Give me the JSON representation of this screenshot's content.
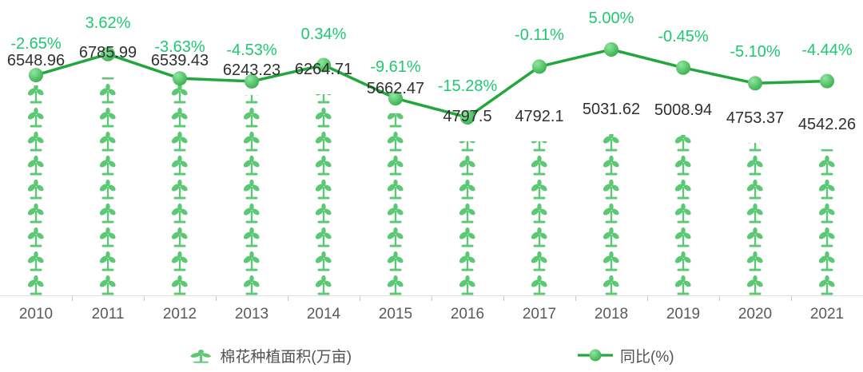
{
  "chart_data": {
    "type": "pictorial-bar+line",
    "title": "",
    "categories": [
      "2010",
      "2011",
      "2012",
      "2013",
      "2014",
      "2015",
      "2016",
      "2017",
      "2018",
      "2019",
      "2020",
      "2021"
    ],
    "series": [
      {
        "name": "棉花种植面积(万亩)",
        "type": "pictorial-bar",
        "symbol": "sprout-seedling",
        "unit": "万亩",
        "values": [
          6548.96,
          6785.99,
          6539.43,
          6243.23,
          6264.71,
          5662.47,
          4797.5,
          4792.1,
          5031.62,
          5008.94,
          4753.37,
          4542.26
        ],
        "labels": [
          "6548.96",
          "6785.99",
          "6539.43",
          "6243.23",
          "6264.71",
          "5662.47",
          "4797.5",
          "4792.1",
          "5031.62",
          "5008.94",
          "4753.37",
          "4542.26"
        ]
      },
      {
        "name": "同比(%)",
        "type": "line",
        "unit": "%",
        "values": [
          -2.65,
          3.62,
          -3.63,
          -4.53,
          0.34,
          -9.61,
          -15.28,
          -0.11,
          5.0,
          -0.45,
          -5.1,
          -4.44
        ],
        "labels": [
          "-2.65%",
          "3.62%",
          "-3.63%",
          "-4.53%",
          "0.34%",
          "-9.61%",
          "-15.28%",
          "-0.11%",
          "5.00%",
          "-0.45%",
          "-5.10%",
          "-4.44%"
        ]
      }
    ],
    "xlabel": "",
    "ylabel": "",
    "bar_axis_range": [
      0,
      7000
    ],
    "line_axis_range": [
      -16,
      6
    ],
    "grid": false,
    "legend_position": "bottom"
  },
  "colors": {
    "pct_label": "#1fc873",
    "value_label": "#303030",
    "line": "#23a73d",
    "dot_light": "#90e6a1",
    "dot_dark": "#38b04d",
    "sprout": "#5bc874",
    "axis": "#e0e0e0",
    "tick": "#c8c8c8",
    "year_label": "#5a5a5a",
    "legend_text": "#525252",
    "background": "#ffffff"
  }
}
